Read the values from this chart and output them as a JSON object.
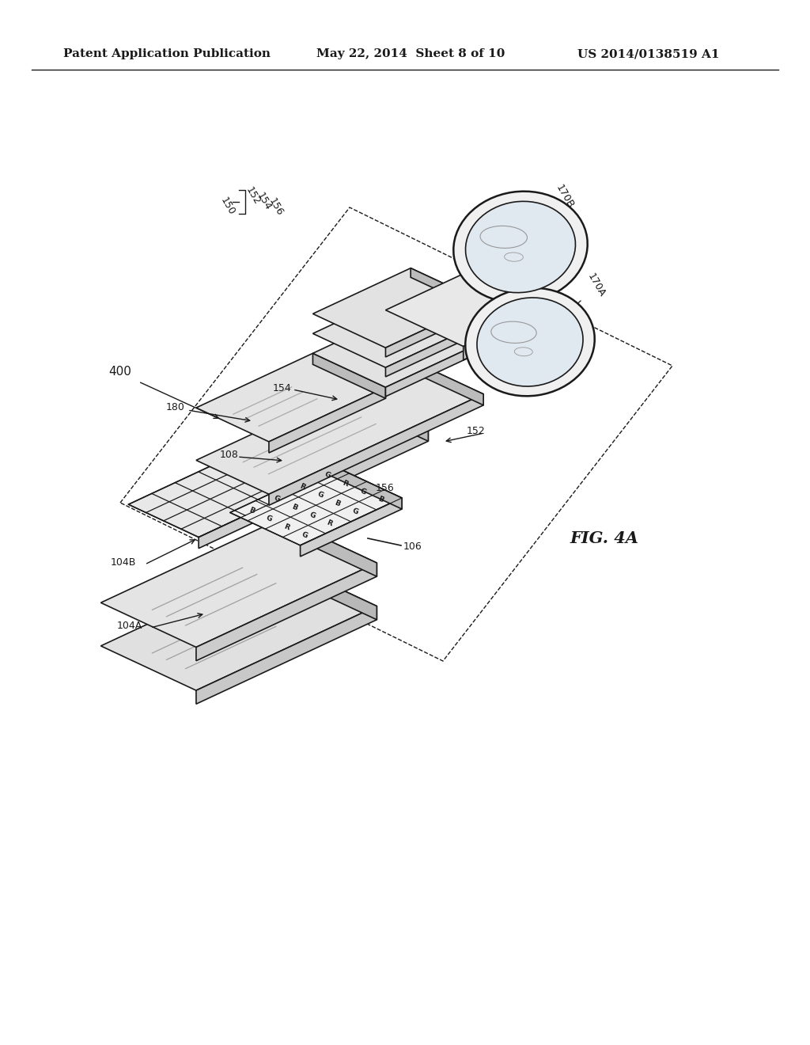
{
  "bg_color": "#ffffff",
  "line_color": "#1a1a1a",
  "header_left": "Patent Application Publication",
  "header_center": "May 22, 2014  Sheet 8 of 10",
  "header_right": "US 2014/0138519 A1",
  "figure_label": "FIG. 4A"
}
